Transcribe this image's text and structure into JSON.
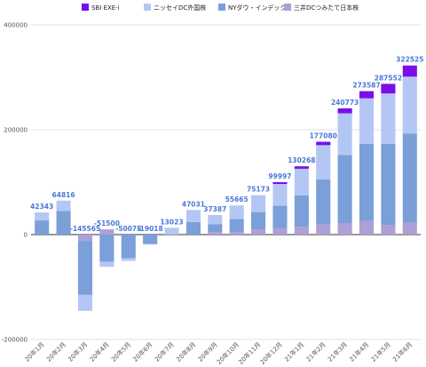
{
  "chart_data": {
    "type": "bar",
    "stacked": true,
    "categories": [
      "20年1月",
      "20年2月",
      "20年3月",
      "20年4月",
      "20年5月",
      "20年6月",
      "20年7月",
      "20年8月",
      "20年9月",
      "20年10月",
      "20年11月",
      "20年12月",
      "21年1月",
      "21年2月",
      "21年3月",
      "21年4月",
      "21年5月",
      "21年6月"
    ],
    "series": [
      {
        "name": "SBI EXE-i",
        "color": "#7b0ee8",
        "values": [
          0,
          0,
          0,
          0,
          0,
          0,
          0,
          0,
          0,
          0,
          0,
          3500,
          4700,
          6500,
          9400,
          13600,
          18400,
          21300
        ]
      },
      {
        "name": "ニッセイDC外国株",
        "color": "#b4c7f4",
        "values": [
          15343,
          19816,
          -30565,
          -9500,
          -5075,
          -1018,
          13023,
          23031,
          17387,
          25665,
          32173,
          41497,
          50568,
          65580,
          79373,
          86987,
          96152,
          108225
        ]
      },
      {
        "name": "NYダウ・インデックス",
        "color": "#7b9fd8",
        "values": [
          27000,
          45000,
          -103000,
          -52000,
          -45000,
          -18000,
          0,
          24000,
          15000,
          25000,
          33000,
          43000,
          60000,
          86000,
          130000,
          147000,
          155000,
          170000
        ]
      },
      {
        "name": "三井DCつみたて日本株",
        "color": "#ae9fd6",
        "values": [
          0,
          0,
          -12000,
          10000,
          0,
          0,
          0,
          0,
          5000,
          5000,
          10000,
          12000,
          15000,
          19000,
          22000,
          26000,
          18000,
          23000
        ]
      }
    ],
    "totals": [
      42343,
      64816,
      -145565,
      -51500,
      -50075,
      -19018,
      13023,
      47031,
      37387,
      55665,
      75173,
      99997,
      130268,
      177080,
      240773,
      273587,
      287552,
      322525
    ],
    "ylim": [
      -200000,
      400000
    ],
    "yticks": [
      -200000,
      0,
      200000,
      400000
    ],
    "grid": true,
    "legend_position": "top"
  }
}
